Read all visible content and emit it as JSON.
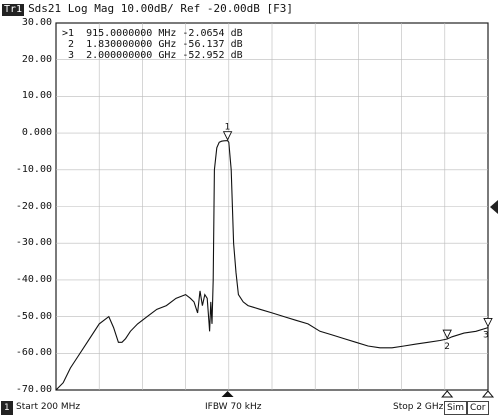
{
  "title_bar": {
    "trace_tag": "Tr1",
    "text": "Sds21 Log Mag 10.00dB/ Ref -20.00dB [F3]"
  },
  "y_axis": {
    "tick_labels": [
      "30.00",
      "20.00",
      "10.00",
      "0.000",
      "-10.00",
      "-20.00",
      "-30.00",
      "-40.00",
      "-50.00",
      "-60.00",
      "-70.00"
    ]
  },
  "markers": [
    {
      "line": ">1  915.0000000 MHz -2.0654 dB",
      "label": "1"
    },
    {
      "line": " 2  1.830000000 GHz -56.137 dB",
      "label": "2"
    },
    {
      "line": " 3  2.000000000 GHz -52.952 dB",
      "label": "3"
    }
  ],
  "status_bar": {
    "channel": "1",
    "start": "Start 200 MHz",
    "ifbw": "IFBW 70 kHz",
    "stop": "Stop 2 GHz",
    "sim": "Sim",
    "cor": "Cor"
  },
  "chart_data": {
    "type": "line",
    "xlim": [
      200,
      2000
    ],
    "ylim": [
      -70,
      30
    ],
    "grid": true,
    "x": [
      200,
      230,
      260,
      290,
      330,
      380,
      420,
      440,
      460,
      475,
      490,
      510,
      540,
      580,
      620,
      660,
      700,
      740,
      760,
      775,
      790,
      800,
      810,
      820,
      830,
      838,
      840,
      845,
      850,
      855,
      860,
      870,
      880,
      890,
      900,
      910,
      915,
      920,
      930,
      940,
      950,
      960,
      980,
      1000,
      1050,
      1100,
      1150,
      1200,
      1250,
      1300,
      1350,
      1400,
      1450,
      1500,
      1550,
      1600,
      1650,
      1700,
      1750,
      1800,
      1830,
      1850,
      1900,
      1950,
      2000
    ],
    "y": [
      -70,
      -68,
      -64,
      -61,
      -57,
      -52,
      -50,
      -53,
      -57,
      -57,
      -56,
      -54,
      -52,
      -50,
      -48,
      -47,
      -45,
      -44,
      -45,
      -46,
      -49,
      -43,
      -47,
      -44,
      -45,
      -52,
      -54,
      -46,
      -52,
      -40,
      -10,
      -4,
      -2.5,
      -2.2,
      -2.1,
      -2.07,
      -2.07,
      -2.5,
      -10,
      -30,
      -38,
      -44,
      -46,
      -47,
      -48,
      -49,
      -50,
      -51,
      -52,
      -54,
      -55,
      -56,
      -57,
      -58,
      -58.5,
      -58.5,
      -58,
      -57.5,
      -57,
      -56.5,
      -56.1,
      -55.5,
      -54.5,
      -54,
      -53
    ]
  }
}
